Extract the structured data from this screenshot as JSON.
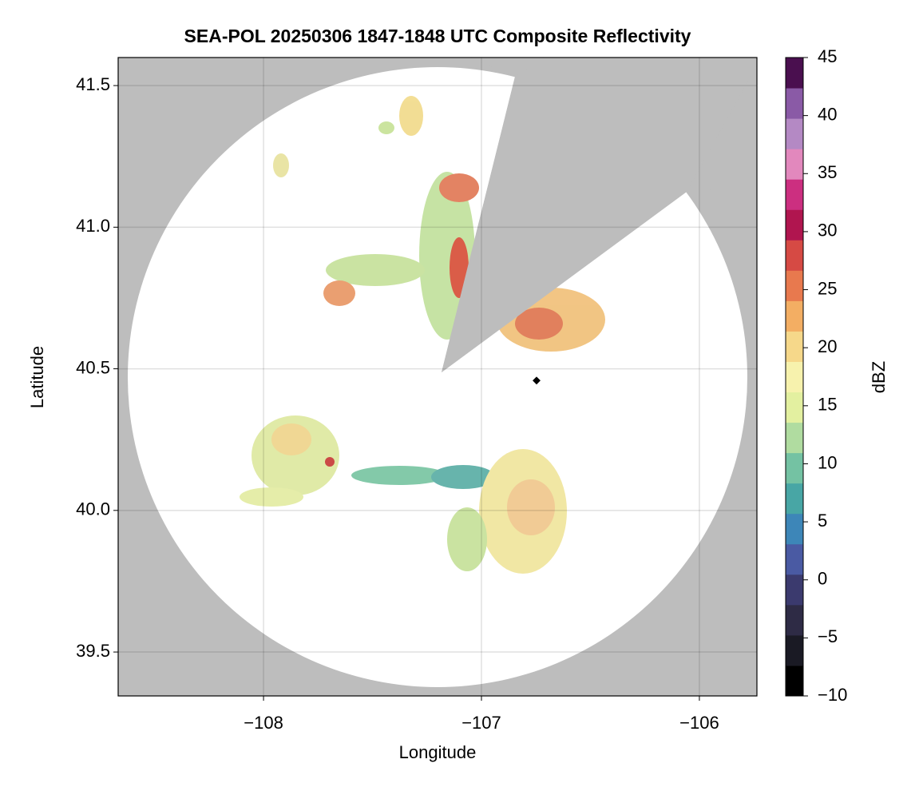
{
  "chart_data": {
    "type": "radar-map",
    "title": "SEA-POL 20250306 1847-1848 UTC Composite Reflectivity",
    "xlabel": "Longitude",
    "ylabel": "Latitude",
    "xlim": [
      -108.667,
      -105.736
    ],
    "ylim": [
      39.345,
      41.599
    ],
    "xticks": [
      {
        "value": -108,
        "label": "−108"
      },
      {
        "value": -107,
        "label": "−107"
      },
      {
        "value": -106,
        "label": "−106"
      }
    ],
    "yticks": [
      {
        "value": 39.5,
        "label": "39.5"
      },
      {
        "value": 40,
        "label": "40.0"
      },
      40.5,
      {
        "value": 41,
        "label": "41.0"
      },
      41.5
    ],
    "grid": true,
    "colorbar": {
      "label": "dBZ",
      "lim": [
        -10,
        45
      ],
      "ticks": [
        {
          "value": -10,
          "label": "−10"
        },
        {
          "value": -5,
          "label": "−5"
        },
        0,
        5,
        10,
        15,
        20,
        25,
        30,
        35,
        40,
        45
      ],
      "colors": [
        "#000000",
        "#1a1a24",
        "#2e2b45",
        "#3b3a6e",
        "#4a5aa3",
        "#3d86b8",
        "#48a6a5",
        "#74c2a3",
        "#b0dca0",
        "#e3f0a0",
        "#f7f2ad",
        "#f6d88a",
        "#f3ae63",
        "#e8794e",
        "#d64a44",
        "#b0154f",
        "#cc2f80",
        "#e288bd",
        "#b489c4",
        "#8a5aa6",
        "#4a0f4f"
      ]
    }
  }
}
